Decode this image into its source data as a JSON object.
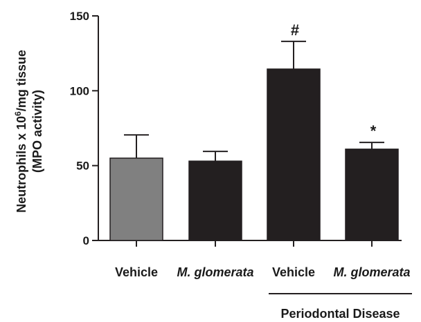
{
  "chart_data": {
    "type": "bar",
    "title": "",
    "ylabel_line1": "Neutrophils x 10",
    "ylabel_sup": "6",
    "ylabel_line1_tail": "/mg tissue",
    "ylabel_line2": "(MPO activity)",
    "xlabel": "",
    "ylim": [
      0,
      150
    ],
    "yticks": [
      "0",
      "50",
      "100",
      "150"
    ],
    "ytick_values": [
      0,
      50,
      100,
      150
    ],
    "categories": [
      "Vehicle",
      "M. glomerata",
      "Vehicle",
      "M. glomerata"
    ],
    "category_italic": [
      false,
      true,
      false,
      true
    ],
    "values": [
      55,
      53,
      114.5,
      61
    ],
    "errors": [
      15.5,
      6.5,
      18.5,
      4.5
    ],
    "bar_colors": [
      "#808080",
      "#231f20",
      "#231f20",
      "#231f20"
    ],
    "annotations": [
      "",
      "",
      "#",
      "*"
    ],
    "group_label": "Periodontal Disease",
    "group_spans_categories": [
      2,
      3
    ],
    "grid": false,
    "legend": "none"
  }
}
